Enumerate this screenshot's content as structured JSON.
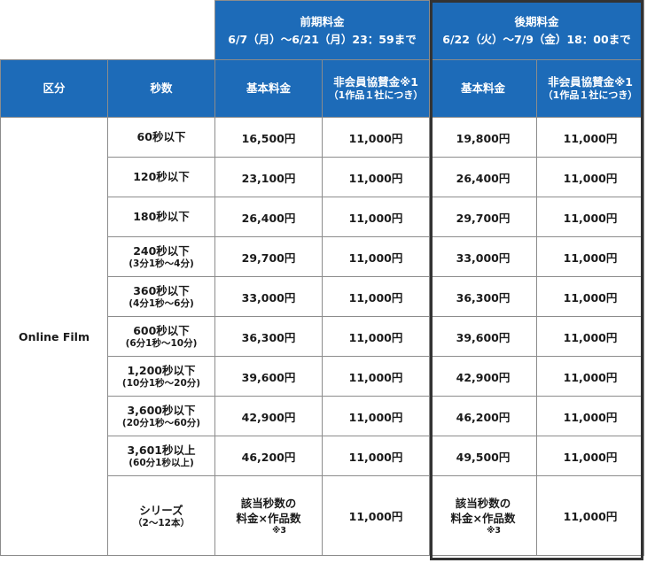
{
  "periods": {
    "early": {
      "title": "前期料金",
      "dates": "6/7（月）～6/21（月）23：59まで"
    },
    "late": {
      "title": "後期料金",
      "dates": "6/22（火）～7/9（金）18：00まで"
    }
  },
  "columns": {
    "category": "区分",
    "seconds": "秒数",
    "base_fee": "基本料金",
    "sponsor_fee": "非会員協賛金※1",
    "sponsor_note": "（1作品１社につき）"
  },
  "category": "Online Film",
  "rows": [
    {
      "seconds": "60秒以下",
      "sub": "",
      "early_base": "16,500円",
      "early_sponsor": "11,000円",
      "late_base": "19,800円",
      "late_sponsor": "11,000円"
    },
    {
      "seconds": "120秒以下",
      "sub": "",
      "early_base": "23,100円",
      "early_sponsor": "11,000円",
      "late_base": "26,400円",
      "late_sponsor": "11,000円"
    },
    {
      "seconds": "180秒以下",
      "sub": "",
      "early_base": "26,400円",
      "early_sponsor": "11,000円",
      "late_base": "29,700円",
      "late_sponsor": "11,000円"
    },
    {
      "seconds": "240秒以下",
      "sub": "(3分1秒～4分)",
      "early_base": "29,700円",
      "early_sponsor": "11,000円",
      "late_base": "33,000円",
      "late_sponsor": "11,000円"
    },
    {
      "seconds": "360秒以下",
      "sub": "(4分1秒～6分)",
      "early_base": "33,000円",
      "early_sponsor": "11,000円",
      "late_base": "36,300円",
      "late_sponsor": "11,000円"
    },
    {
      "seconds": "600秒以下",
      "sub": "(6分1秒～10分)",
      "early_base": "36,300円",
      "early_sponsor": "11,000円",
      "late_base": "39,600円",
      "late_sponsor": "11,000円"
    },
    {
      "seconds": "1,200秒以下",
      "sub": "(10分1秒～20分)",
      "early_base": "39,600円",
      "early_sponsor": "11,000円",
      "late_base": "42,900円",
      "late_sponsor": "11,000円"
    },
    {
      "seconds": "3,600秒以下",
      "sub": "(20分1秒～60分)",
      "early_base": "42,900円",
      "early_sponsor": "11,000円",
      "late_base": "46,200円",
      "late_sponsor": "11,000円"
    },
    {
      "seconds": "3,601秒以上",
      "sub": "(60分1秒以上)",
      "early_base": "46,200円",
      "early_sponsor": "11,000円",
      "late_base": "49,500円",
      "late_sponsor": "11,000円"
    }
  ],
  "series_row": {
    "seconds": "シリーズ",
    "sub": "（2～12本）",
    "base_line1": "該当秒数の",
    "base_line2": "料金×作品数",
    "base_note": "※3",
    "early_sponsor": "11,000円",
    "late_sponsor": "11,000円"
  },
  "colors": {
    "header_blue": "#1d6bb8",
    "border": "#8c8c8c",
    "late_frame": "#333333"
  }
}
